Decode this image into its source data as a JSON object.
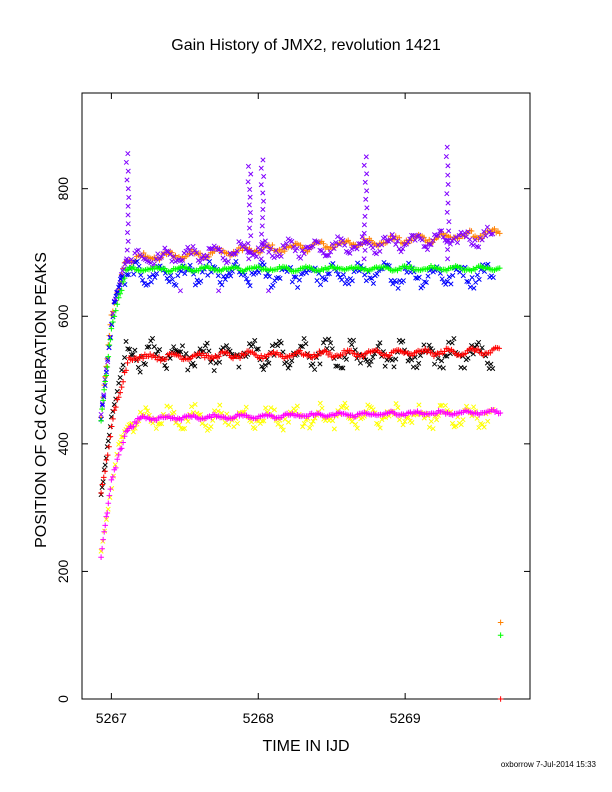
{
  "chart_data": {
    "type": "scatter",
    "title": "Gain History of JMX2, revolution 1421",
    "xlabel": "TIME IN IJD",
    "ylabel": "POSITION OF Cd CALIBRATION PEAKS",
    "footer": "oxborrow  7-Jul-2014 15:33",
    "xlim": [
      5266.8,
      5269.85
    ],
    "ylim": [
      0,
      950
    ],
    "xticks": [
      5267,
      5268,
      5269
    ],
    "yticks": [
      0,
      200,
      400,
      600,
      800
    ],
    "grid": false,
    "legend": "none",
    "series": [
      {
        "color": "#ff8000",
        "marker": "+",
        "rise": [
          [
            5266.93,
            440
          ],
          [
            5267.0,
            600
          ],
          [
            5267.1,
            690
          ]
        ],
        "start": 5267.1,
        "end": 5269.65,
        "from": 690,
        "to": 730,
        "noise": 8,
        "spikes": [],
        "outliers": [
          [
            5269.65,
            120
          ]
        ]
      },
      {
        "color": "#8000ff",
        "marker": "x",
        "rise": [
          [
            5266.93,
            445
          ],
          [
            5267.02,
            620
          ],
          [
            5267.1,
            690
          ]
        ],
        "start": 5267.1,
        "end": 5269.6,
        "from": 690,
        "to": 725,
        "noise": 15,
        "spikes": [
          [
            5267.11,
            855
          ],
          [
            5267.94,
            835
          ],
          [
            5268.03,
            845
          ],
          [
            5268.73,
            850
          ],
          [
            5269.29,
            865
          ]
        ],
        "outliers": [
          [
            5267.47,
            640
          ],
          [
            5267.73,
            640
          ],
          [
            5268.07,
            640
          ]
        ]
      },
      {
        "color": "#0000ff",
        "marker": "x",
        "rise": [
          [
            5266.93,
            440
          ],
          [
            5267.02,
            620
          ],
          [
            5267.08,
            670
          ]
        ],
        "start": 5267.08,
        "end": 5269.6,
        "from": 665,
        "to": 665,
        "noise": 20,
        "spikes": [],
        "outliers": []
      },
      {
        "color": "#00ff00",
        "marker": "+",
        "rise": [
          [
            5266.93,
            440
          ],
          [
            5267.0,
            580
          ],
          [
            5267.1,
            672
          ]
        ],
        "start": 5267.1,
        "end": 5269.65,
        "from": 674,
        "to": 675,
        "noise": 4,
        "spikes": [],
        "outliers": [
          [
            5269.65,
            100
          ]
        ]
      },
      {
        "color": "#000000",
        "marker": "x",
        "rise": [
          [
            5266.93,
            320
          ],
          [
            5267.0,
            440
          ],
          [
            5267.1,
            545
          ]
        ],
        "start": 5267.1,
        "end": 5269.6,
        "from": 540,
        "to": 540,
        "noise": 25,
        "spikes": [],
        "outliers": []
      },
      {
        "color": "#ff0000",
        "marker": "+",
        "rise": [
          [
            5266.93,
            320
          ],
          [
            5267.02,
            450
          ],
          [
            5267.12,
            535
          ]
        ],
        "start": 5267.12,
        "end": 5269.65,
        "from": 536,
        "to": 545,
        "noise": 6,
        "spikes": [],
        "outliers": [
          [
            5269.65,
            0
          ]
        ]
      },
      {
        "color": "#ffff00",
        "marker": "x",
        "rise": [
          [
            5266.93,
            230
          ],
          [
            5267.05,
            400
          ],
          [
            5267.15,
            440
          ]
        ],
        "start": 5267.15,
        "end": 5269.6,
        "from": 440,
        "to": 445,
        "noise": 20,
        "spikes": [],
        "outliers": []
      },
      {
        "color": "#ff00ff",
        "marker": "+",
        "rise": [
          [
            5266.93,
            225
          ],
          [
            5267.0,
            340
          ],
          [
            5267.1,
            420
          ],
          [
            5267.2,
            440
          ]
        ],
        "start": 5267.2,
        "end": 5269.65,
        "from": 440,
        "to": 450,
        "noise": 4,
        "spikes": [],
        "outliers": []
      }
    ]
  }
}
